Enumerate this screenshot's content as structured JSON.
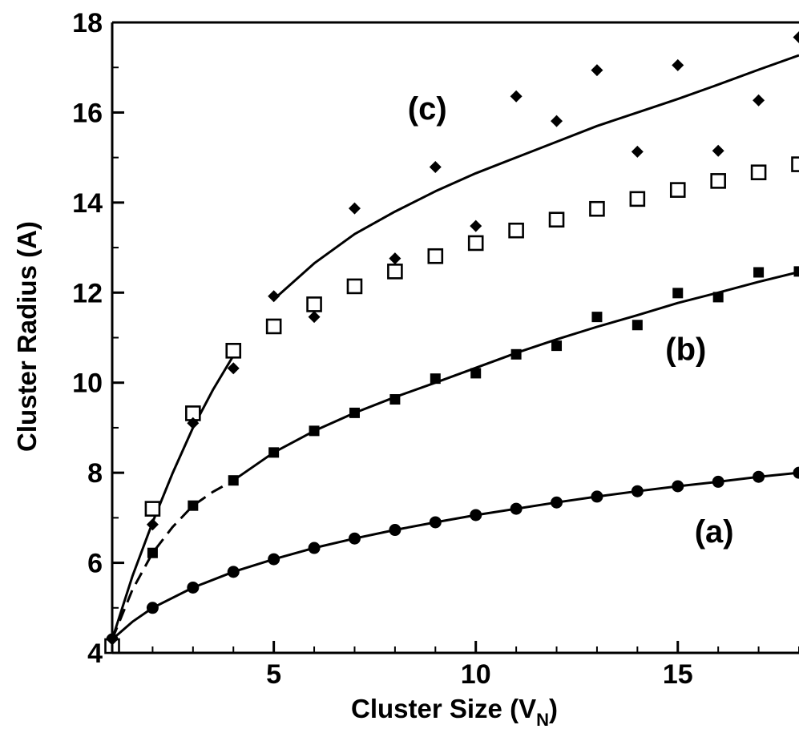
{
  "chart_data": {
    "type": "scatter",
    "xlabel": "Cluster Size (V",
    "xlabel_subscript": "N",
    "xlabel_close": ")",
    "ylabel": "Cluster Radius (A)",
    "xlim": [
      1,
      18
    ],
    "ylim": [
      4,
      18
    ],
    "x_ticks": [
      5,
      10,
      15
    ],
    "x_tick_labels": [
      "5",
      "10",
      "15"
    ],
    "y_ticks": [
      4,
      6,
      8,
      10,
      12,
      14,
      16,
      18
    ],
    "y_tick_labels": [
      "4",
      "6",
      "8",
      "10",
      "12",
      "14",
      "16",
      "18"
    ],
    "grid": false,
    "legend": "none",
    "annotations": [
      {
        "text": "(a)",
        "x": 15.9,
        "y": 6.7
      },
      {
        "text": "(b)",
        "x": 15.2,
        "y": 10.75
      },
      {
        "text": "(c)",
        "x": 8.8,
        "y": 16.1
      }
    ],
    "series": [
      {
        "marker": "circle",
        "x": [
          1,
          2,
          3,
          4,
          5,
          6,
          7,
          8,
          9,
          10,
          11,
          12,
          13,
          14,
          15,
          16,
          17,
          18
        ],
        "y": [
          4.3,
          5.0,
          5.45,
          5.8,
          6.08,
          6.33,
          6.54,
          6.73,
          6.9,
          7.06,
          7.2,
          7.34,
          7.47,
          7.59,
          7.7,
          7.8,
          7.91,
          8.0
        ]
      },
      {
        "marker": "filled-square",
        "x": [
          1,
          2,
          3,
          4,
          5,
          6,
          7,
          8,
          9,
          10,
          11,
          12,
          13,
          14,
          15,
          16,
          17,
          18
        ],
        "y": [
          4.2,
          6.22,
          7.27,
          7.83,
          8.45,
          8.93,
          9.33,
          9.63,
          10.09,
          10.21,
          10.63,
          10.82,
          11.46,
          11.28,
          11.99,
          11.9,
          12.45,
          12.47
        ]
      },
      {
        "marker": "open-square",
        "x": [
          1,
          2,
          3,
          4,
          5,
          6,
          7,
          8,
          9,
          10,
          11,
          12,
          13,
          14,
          15,
          16,
          17,
          18
        ],
        "y": [
          4.15,
          7.2,
          9.32,
          10.71,
          11.25,
          11.74,
          12.14,
          12.47,
          12.81,
          13.1,
          13.38,
          13.62,
          13.86,
          14.08,
          14.28,
          14.48,
          14.67,
          14.85
        ]
      },
      {
        "marker": "diamond",
        "x": [
          1,
          2,
          3,
          4,
          5,
          6,
          7,
          8,
          9,
          10,
          11,
          12,
          13,
          14,
          15,
          16,
          17,
          18
        ],
        "y": [
          4.3,
          6.85,
          9.1,
          10.32,
          11.92,
          11.46,
          13.87,
          12.76,
          14.79,
          13.48,
          16.36,
          15.81,
          16.94,
          15.13,
          17.05,
          15.15,
          16.27,
          17.67
        ]
      }
    ],
    "fit_lines": [
      {
        "style": "solid",
        "x": [
          1,
          1.5,
          2,
          3,
          4,
          5,
          6,
          7,
          8,
          9,
          10,
          11,
          12,
          13,
          14,
          15,
          16,
          17,
          18
        ],
        "y": [
          4.3,
          4.69,
          5.0,
          5.45,
          5.8,
          6.08,
          6.33,
          6.54,
          6.73,
          6.9,
          7.06,
          7.2,
          7.34,
          7.47,
          7.59,
          7.7,
          7.8,
          7.91,
          8.0
        ]
      },
      {
        "style": "dashed",
        "x": [
          1,
          1.5,
          2,
          2.5,
          3,
          3.5,
          4
        ],
        "y": [
          4.3,
          5.4,
          6.22,
          6.8,
          7.27,
          7.58,
          7.83
        ]
      },
      {
        "style": "solid",
        "x": [
          4,
          5,
          6,
          7,
          8,
          9,
          10,
          11,
          12,
          13,
          14,
          15,
          16,
          17,
          18
        ],
        "y": [
          7.83,
          8.45,
          8.93,
          9.33,
          9.68,
          10.0,
          10.33,
          10.66,
          10.96,
          11.24,
          11.5,
          11.77,
          12.0,
          12.24,
          12.46
        ]
      },
      {
        "style": "solid",
        "x": [
          1,
          1.5,
          2,
          2.5,
          3,
          3.5,
          4
        ],
        "y": [
          4.3,
          5.7,
          6.9,
          8.0,
          9.0,
          9.85,
          10.6
        ]
      },
      {
        "style": "solid",
        "x": [
          5,
          6,
          7,
          8,
          9,
          10,
          11,
          12,
          13,
          14,
          15,
          16,
          17,
          18
        ],
        "y": [
          11.85,
          12.65,
          13.3,
          13.8,
          14.25,
          14.65,
          15.0,
          15.35,
          15.7,
          16.0,
          16.3,
          16.62,
          16.95,
          17.27
        ]
      }
    ]
  }
}
